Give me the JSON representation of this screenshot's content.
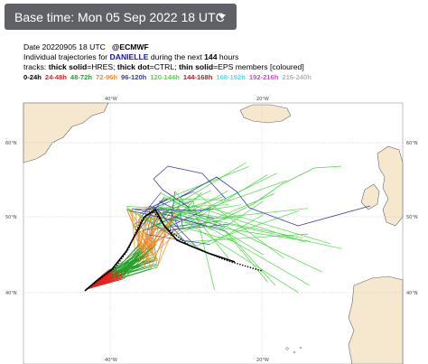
{
  "toolbar": {
    "base_time_label": "Base time: Mon 05 Sep 2022 18 UTC"
  },
  "header": {
    "line1_date": "Date 20220905 18 UTC",
    "line1_source": "@ECMWF",
    "line2_prefix": "Individual trajectories for",
    "line2_name": "DANIELLE",
    "line2_mid": "during the next",
    "line2_hours": "144",
    "line2_suffix": "hours",
    "line3_prefix": "tracks:",
    "line3_hres": "thick solid",
    "line3_hres_label": "=HRES;",
    "line3_ctrl": "thick dot",
    "line3_ctrl_label": "=CTRL;",
    "line3_eps": "thin solid",
    "line3_eps_label": "=EPS members [coloured]"
  },
  "legend": [
    {
      "label": "0-24h",
      "color": "#000000"
    },
    {
      "label": "24-48h",
      "color": "#e8201c"
    },
    {
      "label": "48-72h",
      "color": "#28a028"
    },
    {
      "label": "72-96h",
      "color": "#f08c28"
    },
    {
      "label": "96-120h",
      "color": "#3c3ca0"
    },
    {
      "label": "120-144h",
      "color": "#4cd846"
    },
    {
      "label": "144-168h",
      "color": "#b41e1e"
    },
    {
      "label": "168-192h",
      "color": "#50e0f0"
    },
    {
      "label": "192-216h",
      "color": "#e43cd8"
    },
    {
      "label": "216-240h",
      "color": "#b4b4b4"
    }
  ],
  "map": {
    "lat_labels": [
      "60°N",
      "50°N",
      "40°N"
    ],
    "lon_labels_top": [
      "40°W",
      "20°W"
    ],
    "lon_labels_bottom": [
      "40°W",
      "20°W"
    ],
    "land_color": "#f5e8cf",
    "coast_color": "#666666"
  }
}
